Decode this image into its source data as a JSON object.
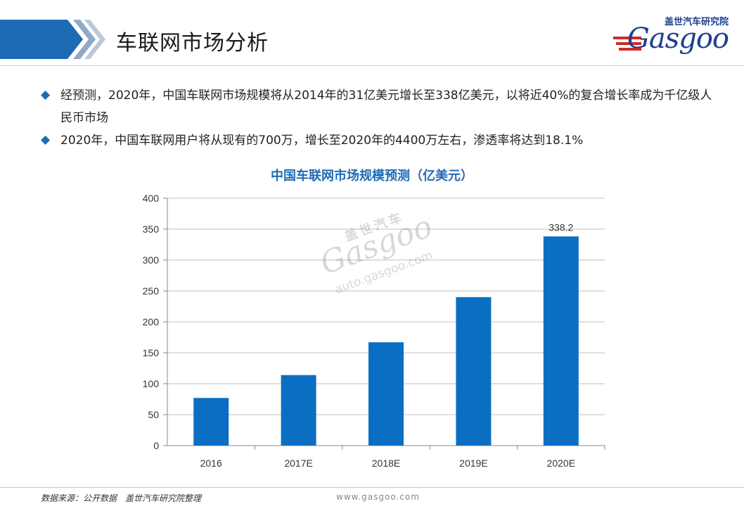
{
  "header": {
    "title": "车联网市场分析",
    "logo_top": "盖世汽车研究院",
    "logo_main": "Gasgoo"
  },
  "bullets": [
    "经预测，2020年，中国车联网市场规模将从2014年的31亿美元增长至338亿美元，以将近40%的复合增长率成为千亿级人民币市场",
    "2020年，中国车联网用户将从现有的700万，增长至2020年的4400万左右，渗透率将达到18.1%"
  ],
  "chart_data": {
    "type": "bar",
    "title": "中国车联网市场规模预测（亿美元）",
    "categories": [
      "2016",
      "2017E",
      "2018E",
      "2019E",
      "2020E"
    ],
    "values": [
      77,
      114,
      167,
      240,
      338.2
    ],
    "data_labels": [
      "",
      "",
      "",
      "",
      "338.2"
    ],
    "ylim": [
      0,
      400
    ],
    "yticks": [
      0,
      50,
      100,
      150,
      200,
      250,
      300,
      350,
      400
    ],
    "grid": true,
    "bar_color": "#0a6fc2"
  },
  "watermark": {
    "top": "盖世汽车",
    "main": "Gasgoo",
    "url": "auto.gasgoo.com"
  },
  "footer": {
    "source": "数据来源：公开数据　盖世汽车研究院整理",
    "url": "www.gasgoo.com"
  },
  "colors": {
    "accent": "#1f6ab5",
    "bullet": "#1f6ab5",
    "title_bar": "#1f6ab5"
  }
}
